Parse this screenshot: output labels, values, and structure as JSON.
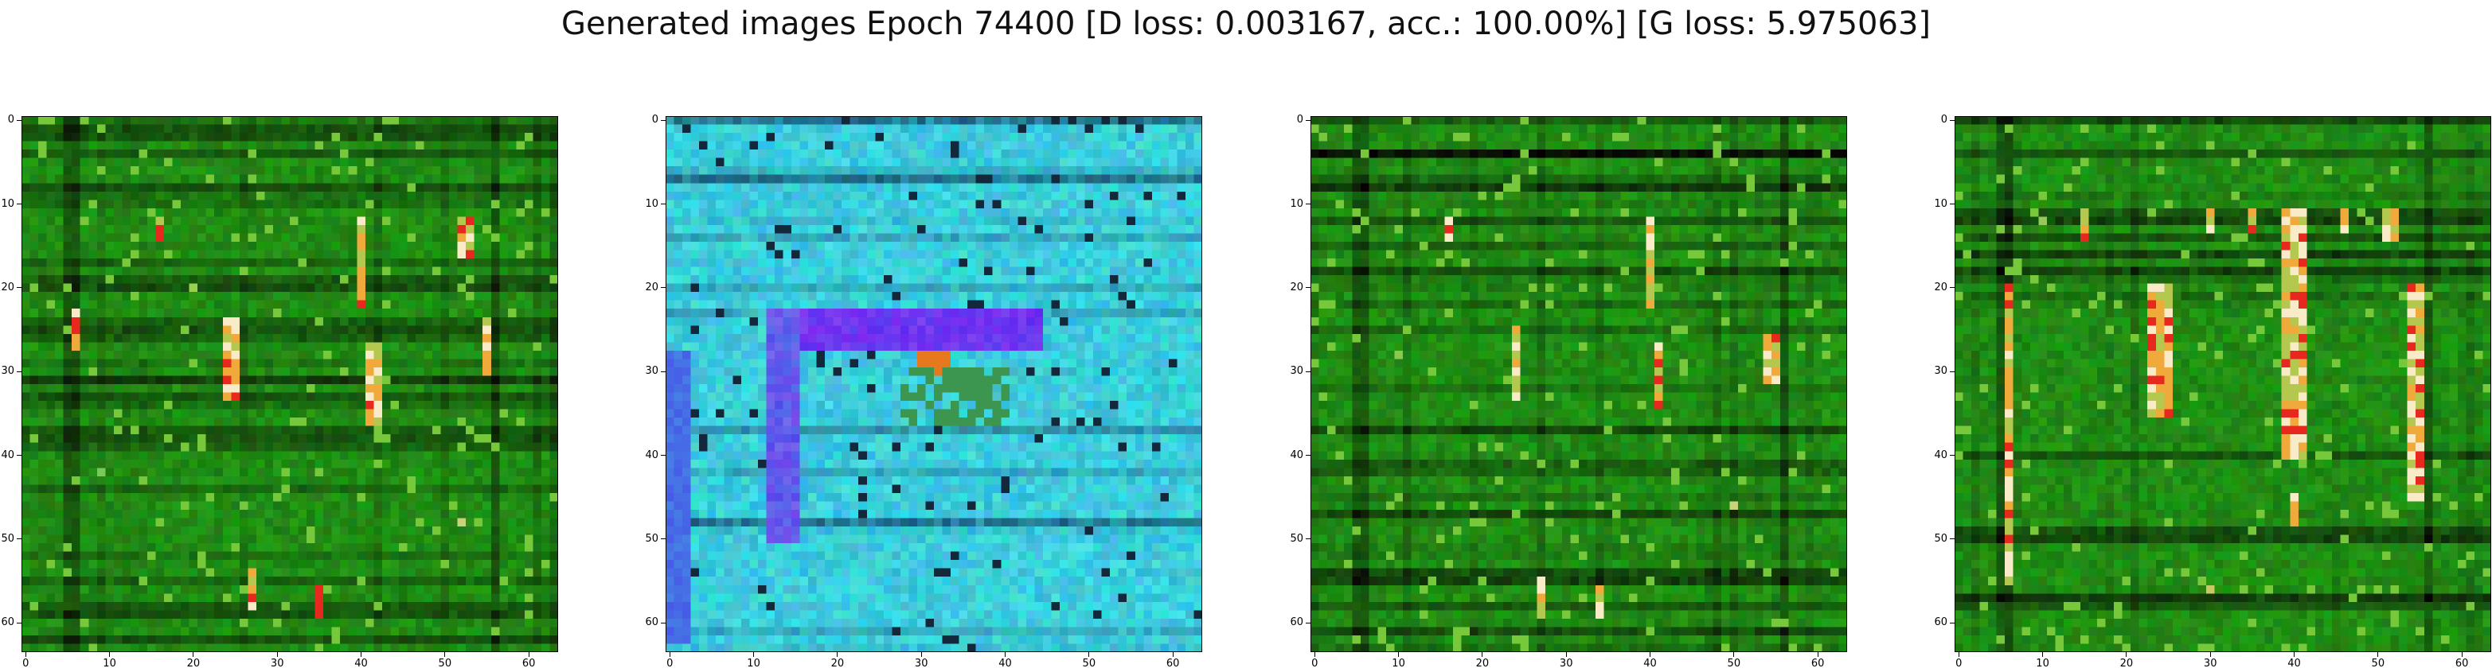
{
  "title": "Generated images Epoch 74400 [D loss: 0.003167, acc.: 100.00%] [G loss: 5.975063]",
  "panels": [
    {
      "name": "generated-image-1",
      "palette": "green",
      "xticks": [
        "0",
        "10",
        "20",
        "30",
        "40",
        "50",
        "60"
      ],
      "yticks": [
        "0",
        "10",
        "20",
        "30",
        "40",
        "50",
        "60"
      ]
    },
    {
      "name": "generated-image-2",
      "palette": "cyan",
      "xticks": [
        "0",
        "10",
        "20",
        "30",
        "40",
        "50",
        "60"
      ],
      "yticks": [
        "0",
        "10",
        "20",
        "30",
        "40",
        "50",
        "60"
      ]
    },
    {
      "name": "generated-image-3",
      "palette": "green",
      "xticks": [
        "0",
        "10",
        "20",
        "30",
        "40",
        "50",
        "60"
      ],
      "yticks": [
        "0",
        "10",
        "20",
        "30",
        "40",
        "50",
        "60"
      ]
    },
    {
      "name": "generated-image-4",
      "palette": "green",
      "xticks": [
        "0",
        "10",
        "20",
        "30",
        "40",
        "50",
        "60"
      ],
      "yticks": [
        "0",
        "10",
        "20",
        "30",
        "40",
        "50",
        "60"
      ]
    }
  ]
}
